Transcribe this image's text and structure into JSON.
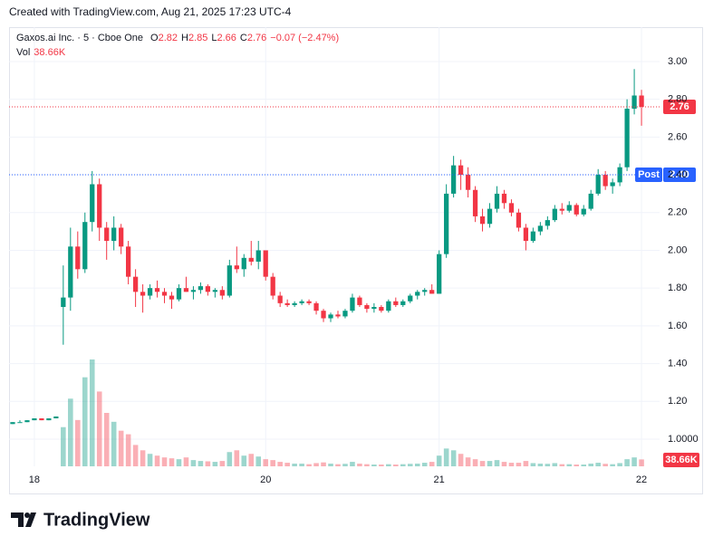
{
  "header": {
    "text": "Created with TradingView.com, Aug 21, 2025 17:23 UTC-4"
  },
  "footer": {
    "brand": "TradingView"
  },
  "chart_data": {
    "type": "candlestick",
    "legend": {
      "name": "Gaxos.ai Inc. · 5 · Cboe One",
      "items": [
        {
          "label": "O",
          "value": 2.82
        },
        {
          "label": "H",
          "value": 2.85
        },
        {
          "label": "L",
          "value": 2.66
        },
        {
          "label": "C",
          "value": 2.76
        }
      ],
      "change": "−0.07 (−2.47%)",
      "volume_label": "Vol",
      "volume_value": "38.66K"
    },
    "categories": [
      null,
      null,
      null,
      "18",
      null,
      null,
      null,
      null,
      null,
      null,
      null,
      null,
      null,
      null,
      null,
      null,
      null,
      null,
      null,
      null,
      null,
      null,
      null,
      null,
      null,
      null,
      null,
      null,
      null,
      null,
      null,
      null,
      null,
      null,
      null,
      "20",
      null,
      null,
      null,
      null,
      null,
      null,
      null,
      null,
      null,
      null,
      null,
      null,
      null,
      null,
      null,
      null,
      null,
      null,
      null,
      null,
      null,
      null,
      null,
      "21",
      null,
      null,
      null,
      null,
      null,
      null,
      null,
      null,
      null,
      null,
      null,
      null,
      null,
      null,
      null,
      null,
      null,
      null,
      null,
      null,
      null,
      null,
      null,
      null,
      null,
      null,
      null,
      "22",
      null,
      null
    ],
    "open": [
      1.08,
      1.09,
      1.09,
      1.1,
      1.11,
      1.1,
      1.11,
      1.7,
      1.75,
      2.02,
      1.9,
      2.15,
      2.35,
      2.12,
      2.05,
      2.12,
      2.02,
      1.86,
      1.78,
      1.76,
      1.8,
      1.78,
      1.76,
      1.74,
      1.8,
      1.78,
      1.79,
      1.81,
      1.78,
      1.79,
      1.76,
      1.92,
      1.9,
      1.96,
      1.94,
      2.0,
      1.86,
      1.76,
      1.72,
      1.71,
      1.72,
      1.73,
      1.72,
      1.68,
      1.64,
      1.66,
      1.65,
      1.68,
      1.75,
      1.71,
      1.69,
      1.7,
      1.68,
      1.73,
      1.71,
      1.73,
      1.76,
      1.78,
      1.79,
      1.77,
      1.98,
      2.3,
      2.45,
      2.4,
      2.32,
      2.18,
      2.14,
      2.22,
      2.3,
      2.25,
      2.2,
      2.12,
      2.05,
      2.1,
      2.13,
      2.16,
      2.22,
      2.21,
      2.24,
      2.19,
      2.22,
      2.3,
      2.4,
      2.34,
      2.36,
      2.44,
      2.75,
      2.82,
      null,
      null
    ],
    "high": [
      1.09,
      1.1,
      1.1,
      1.11,
      1.11,
      1.11,
      1.12,
      1.92,
      2.12,
      2.1,
      2.2,
      2.42,
      2.38,
      2.15,
      2.18,
      2.14,
      2.05,
      1.9,
      1.82,
      1.82,
      1.84,
      1.8,
      1.78,
      1.82,
      1.86,
      1.81,
      1.83,
      1.82,
      1.8,
      1.81,
      1.95,
      2.02,
      1.98,
      2.05,
      2.05,
      2.0,
      1.88,
      1.78,
      1.74,
      1.73,
      1.74,
      1.74,
      1.73,
      1.69,
      1.67,
      1.68,
      1.69,
      1.77,
      1.76,
      1.72,
      1.72,
      1.71,
      1.74,
      1.75,
      1.74,
      1.77,
      1.79,
      1.8,
      1.82,
      2.0,
      2.35,
      2.5,
      2.48,
      2.44,
      2.34,
      2.22,
      2.25,
      2.34,
      2.32,
      2.27,
      2.22,
      2.14,
      2.12,
      2.15,
      2.18,
      2.24,
      2.25,
      2.26,
      2.25,
      2.24,
      2.32,
      2.43,
      2.42,
      2.38,
      2.46,
      2.8,
      2.96,
      2.85,
      null,
      null
    ],
    "low": [
      1.08,
      1.09,
      1.09,
      1.1,
      1.1,
      1.1,
      1.11,
      1.5,
      1.68,
      1.85,
      1.88,
      2.1,
      2.05,
      1.95,
      2.0,
      1.98,
      1.82,
      1.7,
      1.67,
      1.74,
      1.75,
      1.72,
      1.69,
      1.73,
      1.78,
      1.74,
      1.77,
      1.76,
      1.75,
      1.74,
      1.75,
      1.88,
      1.86,
      1.92,
      1.9,
      1.84,
      1.74,
      1.7,
      1.7,
      1.7,
      1.71,
      1.71,
      1.66,
      1.62,
      1.62,
      1.64,
      1.64,
      1.67,
      1.7,
      1.67,
      1.67,
      1.67,
      1.67,
      1.7,
      1.7,
      1.72,
      1.74,
      1.76,
      1.77,
      1.77,
      1.96,
      2.28,
      2.32,
      2.28,
      2.15,
      2.1,
      2.12,
      2.2,
      2.22,
      2.18,
      2.1,
      2.0,
      2.04,
      2.08,
      2.11,
      2.15,
      2.19,
      2.2,
      2.18,
      2.18,
      2.21,
      2.29,
      2.32,
      2.3,
      2.34,
      2.42,
      2.72,
      2.66,
      null,
      null
    ],
    "close": [
      1.09,
      1.09,
      1.1,
      1.11,
      1.1,
      1.11,
      1.12,
      1.75,
      2.02,
      1.9,
      2.15,
      2.35,
      2.12,
      2.05,
      2.12,
      2.02,
      1.86,
      1.78,
      1.76,
      1.8,
      1.78,
      1.76,
      1.74,
      1.8,
      1.78,
      1.79,
      1.81,
      1.78,
      1.79,
      1.76,
      1.92,
      1.9,
      1.96,
      1.94,
      2.0,
      1.86,
      1.76,
      1.72,
      1.71,
      1.72,
      1.73,
      1.72,
      1.68,
      1.64,
      1.66,
      1.65,
      1.68,
      1.75,
      1.71,
      1.69,
      1.7,
      1.68,
      1.73,
      1.71,
      1.73,
      1.76,
      1.78,
      1.79,
      1.77,
      1.98,
      2.3,
      2.45,
      2.4,
      2.32,
      2.18,
      2.14,
      2.22,
      2.3,
      2.25,
      2.2,
      2.12,
      2.05,
      2.1,
      2.13,
      2.16,
      2.22,
      2.21,
      2.24,
      2.19,
      2.22,
      2.3,
      2.4,
      2.34,
      2.36,
      2.44,
      2.75,
      2.82,
      2.76,
      null,
      null
    ],
    "volume": {
      "values": [
        null,
        null,
        null,
        null,
        null,
        null,
        null,
        220000,
        380000,
        260000,
        500000,
        600000,
        420000,
        300000,
        250000,
        200000,
        180000,
        120000,
        90000,
        70000,
        60000,
        50000,
        45000,
        40000,
        50000,
        35000,
        30000,
        28000,
        25000,
        30000,
        80000,
        90000,
        60000,
        70000,
        55000,
        40000,
        35000,
        25000,
        20000,
        15000,
        15000,
        12000,
        18000,
        22000,
        15000,
        12000,
        14000,
        25000,
        15000,
        12000,
        10000,
        10000,
        12000,
        10000,
        12000,
        14000,
        15000,
        20000,
        25000,
        60000,
        100000,
        90000,
        70000,
        50000,
        40000,
        30000,
        30000,
        35000,
        25000,
        20000,
        20000,
        30000,
        18000,
        15000,
        14000,
        18000,
        12000,
        12000,
        10000,
        10000,
        15000,
        20000,
        14000,
        12000,
        18000,
        40000,
        50000,
        38660,
        null,
        null
      ],
      "value_labels": [
        null,
        null,
        null,
        null,
        null,
        null,
        null,
        null,
        null,
        null,
        null,
        null,
        null,
        null,
        null,
        null,
        null,
        null,
        null,
        null,
        null,
        null,
        null,
        null,
        null,
        null,
        null,
        null,
        null,
        null,
        null,
        null,
        null,
        null,
        null,
        null,
        null,
        null,
        null,
        null,
        null,
        null,
        null,
        null,
        null,
        null,
        null,
        null,
        null,
        null,
        null,
        null,
        null,
        null,
        null,
        null,
        null,
        null,
        null,
        null,
        null,
        null,
        null,
        null,
        null,
        null,
        null,
        null,
        null,
        null,
        null,
        null,
        null,
        null,
        null,
        null,
        null,
        null,
        null,
        null,
        null,
        null,
        null,
        null,
        null,
        null,
        null,
        "38.66K",
        null,
        null
      ]
    },
    "up_color": "#089981",
    "down_color": "#f23645",
    "ylim": [
      0.856,
      3.182
    ],
    "yticks": [
      {
        "value": 1,
        "label": "1.0000"
      },
      {
        "value": 1.2,
        "label": "1.20"
      },
      {
        "value": 1.4,
        "label": "1.40"
      },
      {
        "value": 1.6,
        "label": "1.60"
      },
      {
        "value": 1.8,
        "label": "1.80"
      },
      {
        "value": 2,
        "label": "2.00"
      },
      {
        "value": 2.2,
        "label": "2.20"
      },
      {
        "value": 2.4,
        "label": "2.40"
      },
      {
        "value": 2.6,
        "label": "2.60"
      },
      {
        "value": 2.8,
        "label": "2.80"
      },
      {
        "value": 3,
        "label": "3.00"
      }
    ],
    "price_lines": [
      {
        "value": 2.76,
        "color": "#f23645"
      },
      {
        "name": "Post",
        "value": 2.4,
        "label": "2.40",
        "color": "#2962ff"
      }
    ],
    "grid": true
  }
}
